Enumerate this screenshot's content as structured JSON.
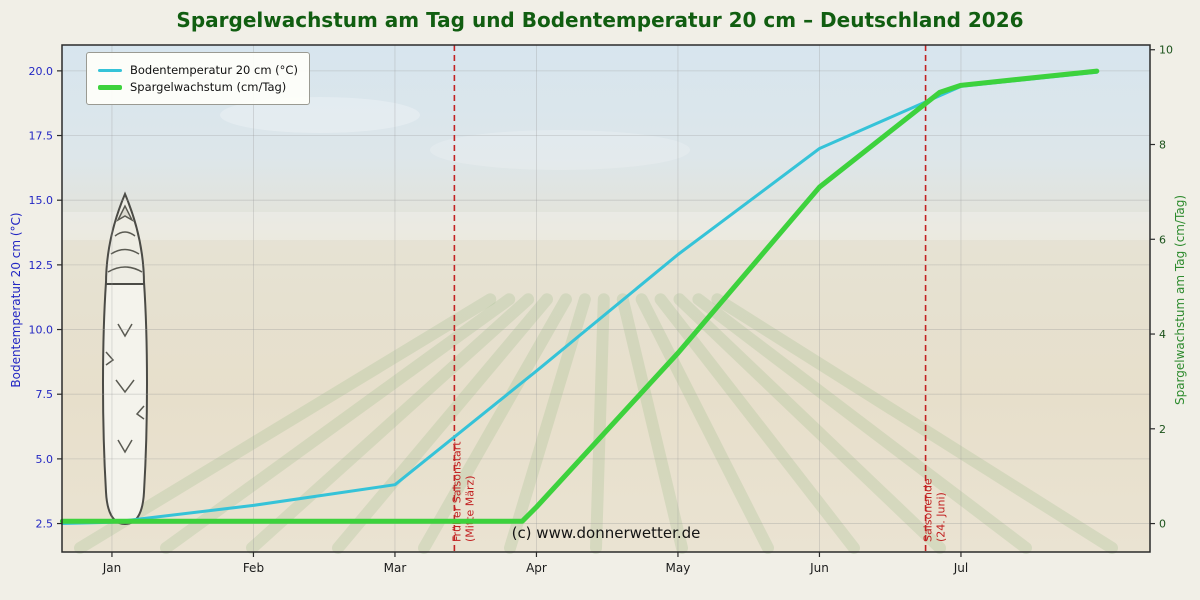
{
  "chart_data": {
    "type": "line",
    "title": "Spargelwachstum am Tag und Bodentemperatur 20 cm – Deutschland 2026",
    "watermark": "(c) www.donnerwetter.de",
    "grid": true,
    "legend_position": "upper left",
    "x_tick_labels": [
      "Jan",
      "Feb",
      "Mar",
      "Apr",
      "May",
      "Jun",
      "Jul"
    ],
    "x_range": [
      -0.353,
      7.336
    ],
    "left_axis": {
      "label": "Bodentemperatur 20 cm (°C)",
      "ticks": [
        2.5,
        5.0,
        7.5,
        10.0,
        12.5,
        15.0,
        17.5,
        20.0
      ],
      "range": [
        1.4,
        21.0
      ],
      "tick_color": "#2327c3"
    },
    "right_axis": {
      "label": "Spargelwachstum am Tag (cm/Tag)",
      "ticks": [
        0,
        2,
        4,
        6,
        8,
        10
      ],
      "range": [
        -0.6,
        10.1
      ],
      "tick_color": "#1b521b"
    },
    "legend": [
      {
        "label": "Bodentemperatur 20 cm (°C)",
        "color": "#35c3d8"
      },
      {
        "label": "Spargelwachstum (cm/Tag)",
        "color": "#3dd23d"
      }
    ],
    "series": [
      {
        "name": "Bodentemperatur 20 cm (°C)",
        "axis": "left",
        "color": "#35c3d8",
        "width": 3,
        "points": [
          [
            -0.35,
            2.5
          ],
          [
            0,
            2.55
          ],
          [
            1,
            3.2
          ],
          [
            2,
            4.0
          ],
          [
            3,
            8.4
          ],
          [
            4,
            12.9
          ],
          [
            5,
            17.0
          ],
          [
            6,
            19.4
          ],
          [
            6.96,
            19.95
          ]
        ]
      },
      {
        "name": "Spargelwachstum (cm/Tag)",
        "axis": "right",
        "color": "#3dd23d",
        "width": 5,
        "points": [
          [
            -0.35,
            0.05
          ],
          [
            1,
            0.05
          ],
          [
            2,
            0.05
          ],
          [
            2.9,
            0.05
          ],
          [
            3,
            0.35
          ],
          [
            4,
            3.6
          ],
          [
            5,
            7.1
          ],
          [
            5.85,
            9.1
          ],
          [
            6,
            9.25
          ],
          [
            6.96,
            9.55
          ]
        ]
      }
    ],
    "annotations": [
      {
        "x": 2.42,
        "line1": "Früher Saisonstart",
        "line2": "(Mitte März)",
        "color": "#c22222"
      },
      {
        "x": 5.75,
        "line1": "Saisonende",
        "line2": "(24. Juni)",
        "color": "#c22222"
      }
    ]
  }
}
